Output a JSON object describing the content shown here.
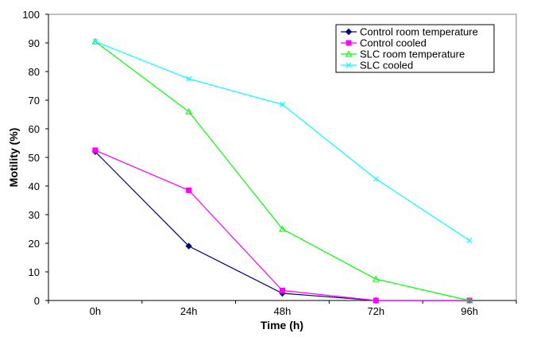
{
  "chart_data": {
    "type": "line",
    "categories": [
      "0h",
      "24h",
      "48h",
      "72h",
      "96h"
    ],
    "xlabel": "Time (h)",
    "ylabel": "Motility (%)",
    "ylim": [
      0,
      100
    ],
    "yticks": [
      "0",
      "10",
      "20",
      "30",
      "40",
      "50",
      "60",
      "70",
      "80",
      "90",
      "100"
    ],
    "grid": false,
    "legend_position": "top-right",
    "series": [
      {
        "name": "Control room temperature",
        "values": [
          52,
          19,
          2.5,
          0,
          0
        ],
        "color": "#000080",
        "marker": "diamond"
      },
      {
        "name": "Control cooled",
        "values": [
          52.5,
          38.5,
          3.5,
          0,
          0
        ],
        "color": "#ff00ff",
        "marker": "square"
      },
      {
        "name": "SLC room temperature",
        "values": [
          90.5,
          66,
          25,
          7.5,
          0
        ],
        "color": "#00ff00",
        "marker": "triangle"
      },
      {
        "name": "SLC cooled",
        "values": [
          90.5,
          77.5,
          68.5,
          42.5,
          21
        ],
        "color": "#00ffff",
        "marker": "x"
      }
    ]
  }
}
